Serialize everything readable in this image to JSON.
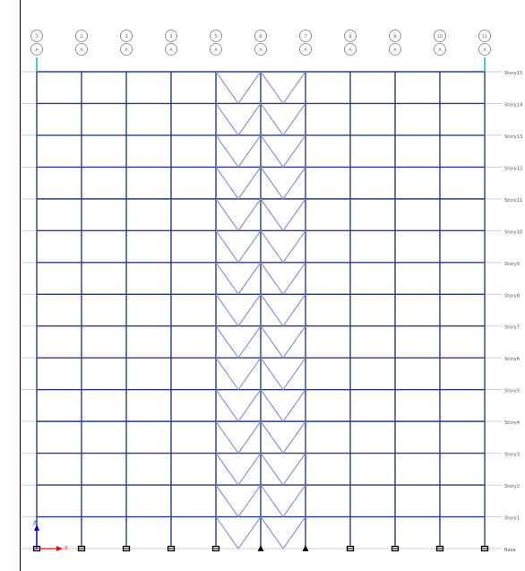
{
  "view": {
    "background": "#ffffff",
    "frame_color": "#2b3a8f",
    "brace_color": "#8a93d6",
    "level_line_color": "#cfcfcf",
    "bubble_color": "#7a7a7a",
    "label_color": "#555555",
    "axis_color_x": "#ff0000",
    "axis_color_z": "#0000ff",
    "support_color": "#000000",
    "column_stub_color": "#00b0c8"
  },
  "gridlines": [
    {
      "top": "1",
      "bottom": "A"
    },
    {
      "top": "2",
      "bottom": "A"
    },
    {
      "top": "3",
      "bottom": "A"
    },
    {
      "top": "4",
      "bottom": "A"
    },
    {
      "top": "5",
      "bottom": "A"
    },
    {
      "top": "6",
      "bottom": "A"
    },
    {
      "top": "7",
      "bottom": "A"
    },
    {
      "top": "8",
      "bottom": "A"
    },
    {
      "top": "9",
      "bottom": "A"
    },
    {
      "top": "10",
      "bottom": "A"
    },
    {
      "top": "11",
      "bottom": "A"
    }
  ],
  "stories": [
    "Story15",
    "Story14",
    "Story13",
    "Story12",
    "Story11",
    "Story10",
    "Story9",
    "Story8",
    "Story7",
    "Story6",
    "Story5",
    "Story4",
    "Story3",
    "Story2",
    "Story1",
    "Base"
  ],
  "braced_bays": [
    4,
    5
  ],
  "pinned_supports": [
    5,
    6
  ],
  "axis": {
    "x_label": "X",
    "z_label": "Z"
  }
}
